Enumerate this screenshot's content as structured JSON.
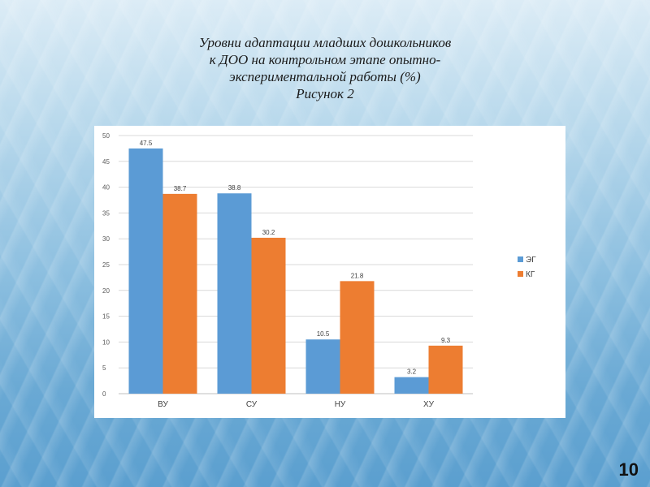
{
  "slide": {
    "title_lines": [
      "Уровни адаптации младших дошкольников",
      "к ДОО на контрольном этапе опытно-",
      "экспериментальной работы (%)",
      "Рисунок 2"
    ],
    "page_number": "10"
  },
  "colors": {
    "series_1": "#5b9bd5",
    "series_2": "#ed7d31",
    "grid": "#d9d9d9",
    "axis": "#bfbfbf"
  },
  "chart_data": {
    "type": "bar",
    "title": "",
    "xlabel": "",
    "ylabel": "",
    "categories": [
      "ВУ",
      "СУ",
      "НУ",
      "ХУ"
    ],
    "series": [
      {
        "name": "ЭГ",
        "values": [
          47.5,
          38.8,
          10.5,
          3.2
        ]
      },
      {
        "name": "КГ",
        "values": [
          38.7,
          30.2,
          21.8,
          9.3
        ]
      }
    ],
    "ylim": [
      0,
      50
    ],
    "yticks": [
      0,
      5,
      10,
      15,
      20,
      25,
      30,
      35,
      40,
      45,
      50
    ],
    "grid": true,
    "legend_position": "right",
    "data_labels": true
  }
}
